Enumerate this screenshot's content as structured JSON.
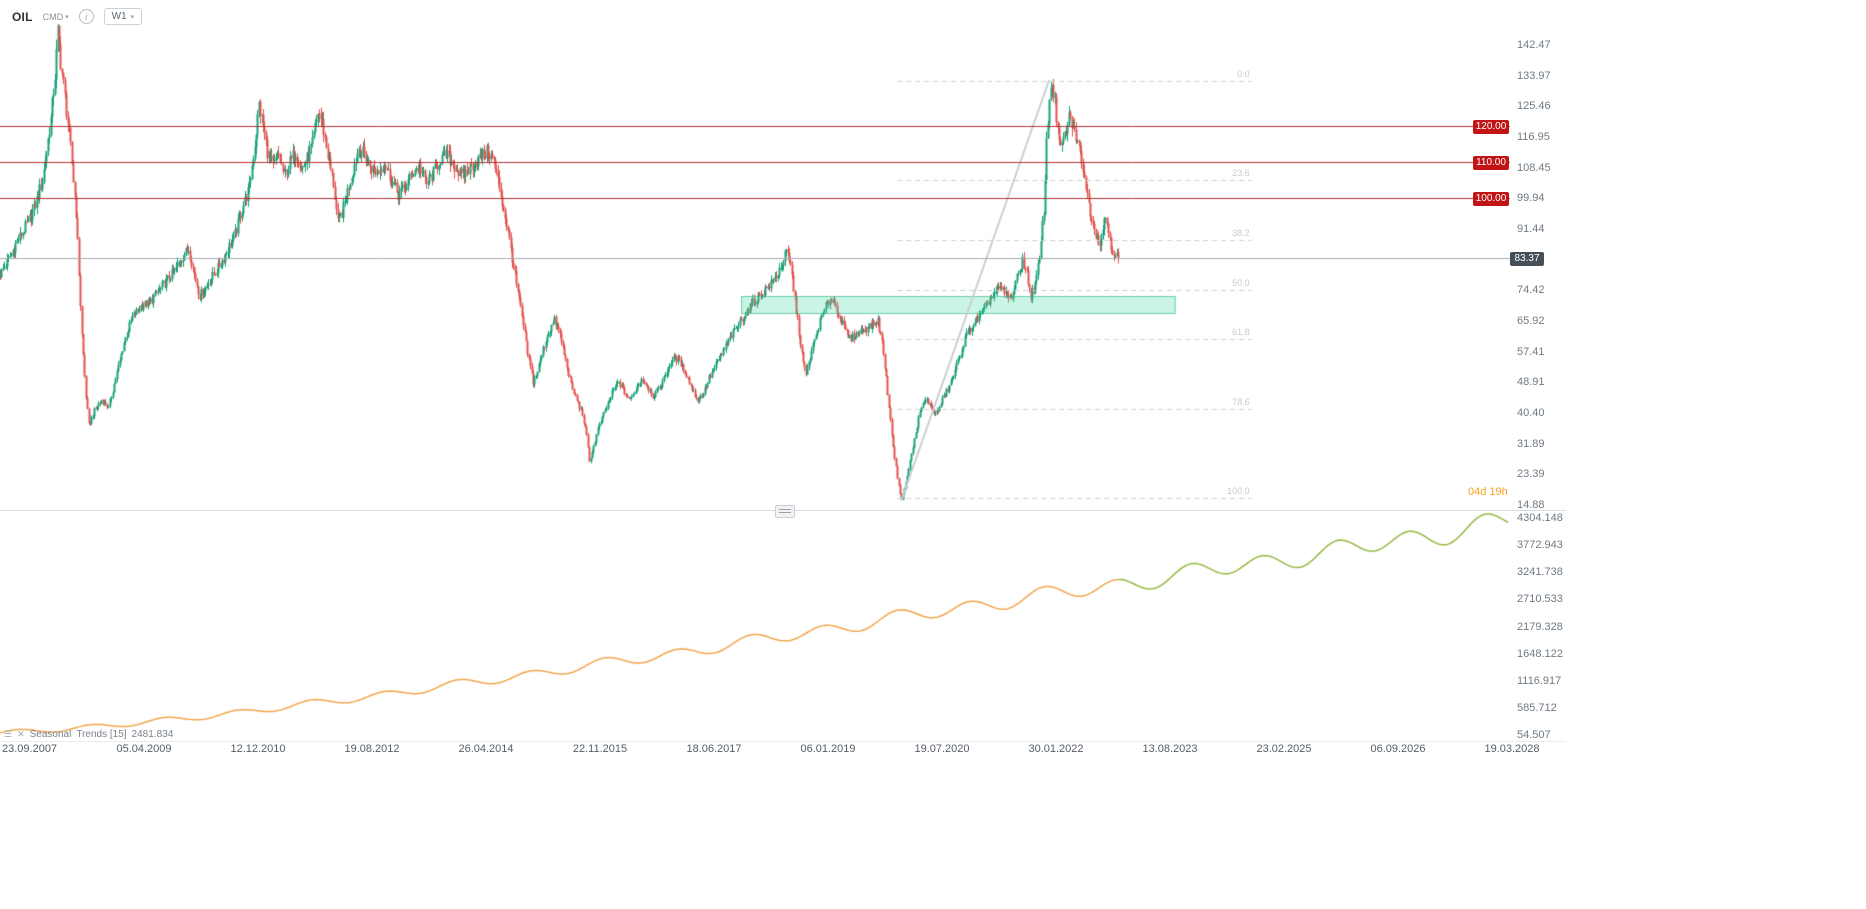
{
  "header": {
    "symbol": "OIL",
    "market_badge": "CMD",
    "info_icon": "i",
    "timeframe": "W1",
    "caret": "▾"
  },
  "price_axis": {
    "ticks": [
      142.47,
      133.97,
      125.46,
      116.95,
      108.45,
      99.94,
      91.44,
      74.42,
      65.92,
      57.41,
      48.91,
      40.4,
      31.89,
      23.39,
      14.88
    ]
  },
  "price_lines": [
    {
      "price": 120.0,
      "label": "120.00",
      "color": "#b53030",
      "badge_color": "#c11414"
    },
    {
      "price": 110.0,
      "label": "110.00",
      "color": "#b53030",
      "badge_color": "#c11414"
    },
    {
      "price": 100.0,
      "label": "100.00",
      "color": "#b53030",
      "badge_color": "#c11414"
    }
  ],
  "current_price": {
    "value": 83.37,
    "label": "83.37",
    "line_color": "#a7adb3",
    "badge_color": "#455059"
  },
  "fibonacci": {
    "high_price": 132.4,
    "low_price": 16.9,
    "start_week": 638,
    "end_week": 890,
    "color": "#cdd0d3",
    "levels": [
      {
        "pct": 0.0,
        "label": "0.0"
      },
      {
        "pct": 23.6,
        "label": "23.6"
      },
      {
        "pct": 38.2,
        "label": "38.2"
      },
      {
        "pct": 50.0,
        "label": "50.0"
      },
      {
        "pct": 61.8,
        "label": "61.8"
      },
      {
        "pct": 78.6,
        "label": "78.6"
      },
      {
        "pct": 100.0,
        "label": "100.0"
      }
    ]
  },
  "trend_line": {
    "from_week": 641,
    "from_price": 16.2,
    "to_week": 746,
    "to_price": 132.8,
    "color": "#c9ced2"
  },
  "zone": {
    "from_week": 527,
    "to_week": 836,
    "top_price": 72.8,
    "bottom_price": 68.0,
    "fill": "rgba(64,214,160,0.28)",
    "border": "rgba(23,178,126,0.55)"
  },
  "countdown": {
    "text": "04d 19h",
    "color": "#f7a21c"
  },
  "time_axis": {
    "labels": [
      "23.09.2007",
      "05.04.2009",
      "12.12.2010",
      "19.08.2012",
      "26.04.2014",
      "22.11.2015",
      "18.06.2017",
      "06.01.2019",
      "19.07.2020",
      "30.01.2022",
      "13.08.2023",
      "23.02.2025",
      "06.09.2026",
      "19.03.2028"
    ]
  },
  "seasonal_panel": {
    "legend": {
      "menu_icon": "☰",
      "close_icon": "✕",
      "name": "Seasonal",
      "params": "Trends  [15]",
      "value": "2481.834"
    },
    "ticks": [
      4304.148,
      3772.943,
      3241.738,
      2710.533,
      2179.328,
      1648.122,
      1116.917,
      585.712,
      54.507
    ],
    "colors": {
      "past": "#f2a44c",
      "future": "#93b941"
    }
  },
  "chart_data": [
    {
      "type": "candlestick",
      "symbol": "OIL",
      "timeframe": "W1",
      "weeks_total": 1073,
      "candles_to_week": 795,
      "last_close": 83.37,
      "volatility": 0.035,
      "up_color": "#18a179",
      "down_color": "#e1534e",
      "y_range": [
        13.5,
        155.0
      ],
      "price_keyframes": [
        [
          0,
          79
        ],
        [
          6,
          83
        ],
        [
          12,
          88
        ],
        [
          18,
          92
        ],
        [
          24,
          97
        ],
        [
          30,
          105
        ],
        [
          36,
          122
        ],
        [
          39,
          134
        ],
        [
          41,
          146
        ],
        [
          43,
          138
        ],
        [
          46,
          128
        ],
        [
          50,
          114
        ],
        [
          54,
          96
        ],
        [
          58,
          62
        ],
        [
          61,
          45
        ],
        [
          63,
          37
        ],
        [
          67,
          41
        ],
        [
          72,
          44
        ],
        [
          77,
          42
        ],
        [
          82,
          50
        ],
        [
          88,
          60
        ],
        [
          94,
          67
        ],
        [
          100,
          70
        ],
        [
          106,
          71
        ],
        [
          112,
          74
        ],
        [
          118,
          77
        ],
        [
          124,
          80
        ],
        [
          130,
          84
        ],
        [
          134,
          86
        ],
        [
          138,
          79
        ],
        [
          142,
          73
        ],
        [
          147,
          76
        ],
        [
          152,
          79
        ],
        [
          157,
          82
        ],
        [
          162,
          86
        ],
        [
          167,
          90
        ],
        [
          172,
          97
        ],
        [
          177,
          103
        ],
        [
          181,
          115
        ],
        [
          184,
          126
        ],
        [
          187,
          120
        ],
        [
          190,
          113
        ],
        [
          194,
          109
        ],
        [
          198,
          112
        ],
        [
          202,
          106
        ],
        [
          206,
          110
        ],
        [
          210,
          113
        ],
        [
          214,
          108
        ],
        [
          218,
          111
        ],
        [
          222,
          115
        ],
        [
          226,
          124
        ],
        [
          229,
          121
        ],
        [
          233,
          112
        ],
        [
          237,
          104
        ],
        [
          240,
          93
        ],
        [
          243,
          96
        ],
        [
          247,
          102
        ],
        [
          251,
          108
        ],
        [
          255,
          114
        ],
        [
          259,
          112
        ],
        [
          263,
          109
        ],
        [
          268,
          107
        ],
        [
          273,
          110
        ],
        [
          278,
          105
        ],
        [
          283,
          101
        ],
        [
          288,
          103
        ],
        [
          293,
          107
        ],
        [
          298,
          109
        ],
        [
          303,
          104
        ],
        [
          308,
          107
        ],
        [
          313,
          111
        ],
        [
          318,
          112
        ],
        [
          323,
          109
        ],
        [
          328,
          106
        ],
        [
          333,
          108
        ],
        [
          338,
          110
        ],
        [
          343,
          112
        ],
        [
          347,
          113
        ],
        [
          351,
          110
        ],
        [
          355,
          103
        ],
        [
          359,
          95
        ],
        [
          363,
          86
        ],
        [
          367,
          76
        ],
        [
          371,
          67
        ],
        [
          375,
          57
        ],
        [
          379,
          49
        ],
        [
          382,
          52
        ],
        [
          386,
          58
        ],
        [
          390,
          63
        ],
        [
          394,
          66
        ],
        [
          398,
          62
        ],
        [
          402,
          55
        ],
        [
          406,
          48
        ],
        [
          410,
          44
        ],
        [
          414,
          40
        ],
        [
          417,
          34
        ],
        [
          419,
          27
        ],
        [
          422,
          31
        ],
        [
          425,
          36
        ],
        [
          428,
          39
        ],
        [
          432,
          43
        ],
        [
          436,
          47
        ],
        [
          440,
          49
        ],
        [
          444,
          46
        ],
        [
          448,
          44
        ],
        [
          452,
          47
        ],
        [
          456,
          50
        ],
        [
          460,
          48
        ],
        [
          464,
          45
        ],
        [
          468,
          47
        ],
        [
          472,
          50
        ],
        [
          476,
          54
        ],
        [
          480,
          56
        ],
        [
          484,
          54
        ],
        [
          488,
          51
        ],
        [
          492,
          47
        ],
        [
          496,
          44
        ],
        [
          500,
          46
        ],
        [
          504,
          50
        ],
        [
          508,
          53
        ],
        [
          512,
          56
        ],
        [
          516,
          59
        ],
        [
          520,
          62
        ],
        [
          525,
          65
        ],
        [
          530,
          68
        ],
        [
          535,
          71
        ],
        [
          540,
          73
        ],
        [
          545,
          75
        ],
        [
          550,
          77
        ],
        [
          555,
          81
        ],
        [
          559,
          85
        ],
        [
          562,
          81
        ],
        [
          565,
          72
        ],
        [
          568,
          63
        ],
        [
          571,
          54
        ],
        [
          573,
          51
        ],
        [
          576,
          56
        ],
        [
          580,
          62
        ],
        [
          584,
          67
        ],
        [
          588,
          71
        ],
        [
          592,
          72
        ],
        [
          596,
          68
        ],
        [
          600,
          64
        ],
        [
          604,
          61
        ],
        [
          608,
          62
        ],
        [
          612,
          63
        ],
        [
          616,
          64
        ],
        [
          620,
          65
        ],
        [
          624,
          66
        ],
        [
          627,
          60
        ],
        [
          630,
          50
        ],
        [
          633,
          38
        ],
        [
          636,
          28
        ],
        [
          639,
          20
        ],
        [
          641,
          16.5
        ],
        [
          644,
          21
        ],
        [
          647,
          27
        ],
        [
          650,
          33
        ],
        [
          653,
          39
        ],
        [
          656,
          43
        ],
        [
          659,
          44
        ],
        [
          662,
          42
        ],
        [
          665,
          40
        ],
        [
          668,
          42
        ],
        [
          671,
          45
        ],
        [
          674,
          47
        ],
        [
          678,
          51
        ],
        [
          682,
          56
        ],
        [
          686,
          61
        ],
        [
          690,
          64
        ],
        [
          694,
          66
        ],
        [
          698,
          68
        ],
        [
          702,
          71
        ],
        [
          706,
          73
        ],
        [
          710,
          75
        ],
        [
          714,
          74
        ],
        [
          718,
          72
        ],
        [
          721,
          75
        ],
        [
          724,
          79
        ],
        [
          727,
          83
        ],
        [
          730,
          79
        ],
        [
          733,
          73
        ],
        [
          736,
          76
        ],
        [
          739,
          83
        ],
        [
          742,
          97
        ],
        [
          744,
          115
        ],
        [
          746,
          128
        ],
        [
          748,
          133
        ],
        [
          750,
          126
        ],
        [
          752,
          119
        ],
        [
          754,
          113
        ],
        [
          756,
          116
        ],
        [
          758,
          119
        ],
        [
          760,
          122
        ],
        [
          762,
          121
        ],
        [
          764,
          118
        ],
        [
          766,
          116
        ],
        [
          768,
          112
        ],
        [
          770,
          109
        ],
        [
          772,
          103
        ],
        [
          774,
          98
        ],
        [
          776,
          95
        ],
        [
          778,
          92
        ],
        [
          780,
          89
        ],
        [
          782,
          88
        ],
        [
          784,
          92
        ],
        [
          786,
          95
        ],
        [
          788,
          91
        ],
        [
          790,
          87
        ],
        [
          792,
          85
        ],
        [
          795,
          83.4
        ]
      ]
    },
    {
      "type": "line",
      "name": "Seasonal Trends",
      "split_t": 0.741,
      "annual_cycles": 20.6,
      "keyframes": [
        [
          0,
          95
        ],
        [
          0.04,
          165
        ],
        [
          0.08,
          260
        ],
        [
          0.12,
          370
        ],
        [
          0.16,
          500
        ],
        [
          0.2,
          645
        ],
        [
          0.24,
          790
        ],
        [
          0.28,
          950
        ],
        [
          0.32,
          1110
        ],
        [
          0.36,
          1280
        ],
        [
          0.4,
          1450
        ],
        [
          0.44,
          1620
        ],
        [
          0.48,
          1800
        ],
        [
          0.52,
          1990
        ],
        [
          0.56,
          2180
        ],
        [
          0.6,
          2370
        ],
        [
          0.64,
          2560
        ],
        [
          0.68,
          2740
        ],
        [
          0.72,
          2900
        ],
        [
          0.741,
          2990
        ],
        [
          0.78,
          3180
        ],
        [
          0.82,
          3360
        ],
        [
          0.86,
          3540
        ],
        [
          0.9,
          3730
        ],
        [
          0.94,
          3920
        ],
        [
          0.97,
          4080
        ],
        [
          1,
          4260
        ]
      ]
    }
  ]
}
